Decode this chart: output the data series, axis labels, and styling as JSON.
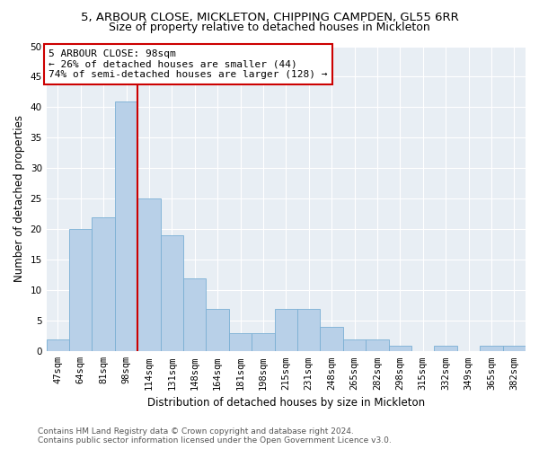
{
  "title": "5, ARBOUR CLOSE, MICKLETON, CHIPPING CAMPDEN, GL55 6RR",
  "subtitle": "Size of property relative to detached houses in Mickleton",
  "xlabel": "Distribution of detached houses by size in Mickleton",
  "ylabel": "Number of detached properties",
  "categories": [
    "47sqm",
    "64sqm",
    "81sqm",
    "98sqm",
    "114sqm",
    "131sqm",
    "148sqm",
    "164sqm",
    "181sqm",
    "198sqm",
    "215sqm",
    "231sqm",
    "248sqm",
    "265sqm",
    "282sqm",
    "298sqm",
    "315sqm",
    "332sqm",
    "349sqm",
    "365sqm",
    "382sqm"
  ],
  "values": [
    2,
    20,
    22,
    41,
    25,
    19,
    12,
    7,
    3,
    3,
    7,
    7,
    4,
    2,
    2,
    1,
    0,
    1,
    0,
    1,
    1
  ],
  "bar_color": "#b8d0e8",
  "bar_edge_color": "#7aafd4",
  "highlight_line_color": "#cc0000",
  "highlight_line_index": 3,
  "annotation_line1": "5 ARBOUR CLOSE: 98sqm",
  "annotation_line2": "← 26% of detached houses are smaller (44)",
  "annotation_line3": "74% of semi-detached houses are larger (128) →",
  "annotation_box_color": "#cc0000",
  "ylim": [
    0,
    50
  ],
  "yticks": [
    0,
    5,
    10,
    15,
    20,
    25,
    30,
    35,
    40,
    45,
    50
  ],
  "background_color": "#e8eef4",
  "footer_line1": "Contains HM Land Registry data © Crown copyright and database right 2024.",
  "footer_line2": "Contains public sector information licensed under the Open Government Licence v3.0.",
  "title_fontsize": 9.5,
  "subtitle_fontsize": 9,
  "axis_label_fontsize": 8.5,
  "tick_fontsize": 7.5,
  "annotation_fontsize": 8,
  "footer_fontsize": 6.5
}
